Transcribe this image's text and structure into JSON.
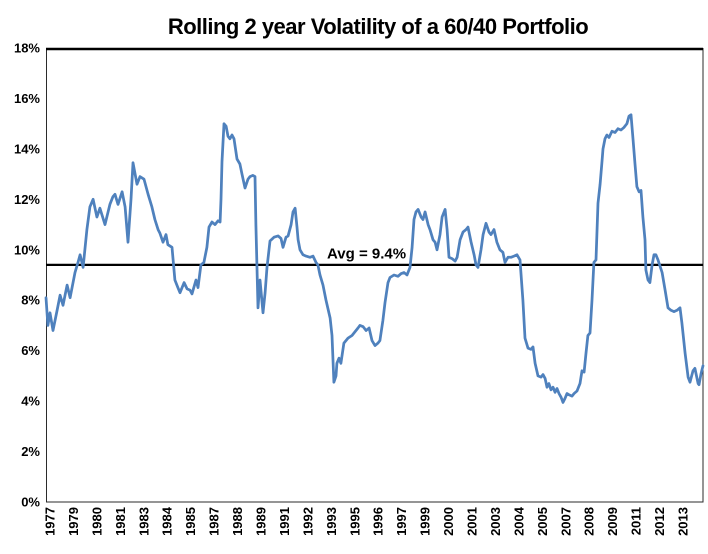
{
  "window": {
    "background": "#ffffff"
  },
  "chart_data": {
    "type": "line",
    "title": "Rolling 2 year Volatility of a 60/40 Portfolio",
    "xlabel": "",
    "ylabel": "",
    "grid": "off",
    "legend": "none",
    "x_range": [
      1977.0,
      2014.4
    ],
    "y_axis": {
      "min": 0,
      "max": 18,
      "tick_step": 2,
      "tick_labels": [
        "0%",
        "2%",
        "4%",
        "6%",
        "8%",
        "10%",
        "12%",
        "14%",
        "16%",
        "18%"
      ]
    },
    "x_tick_labels": [
      "1977",
      "1979",
      "1980",
      "1981",
      "1983",
      "1984",
      "1985",
      "1987",
      "1988",
      "1989",
      "1991",
      "1992",
      "1993",
      "1995",
      "1996",
      "1997",
      "1999",
      "2000",
      "2001",
      "2003",
      "2004",
      "2005",
      "2007",
      "2008",
      "2009",
      "2011",
      "2012",
      "2013"
    ],
    "average_line": {
      "value": 9.4,
      "label": "Avg = 9.4%",
      "color": "#000000"
    },
    "series": [
      {
        "name": "Rolling 2 year volatility",
        "color": "#4F81BD",
        "points": [
          [
            1977.0,
            8.1
          ],
          [
            1977.11,
            7.0
          ],
          [
            1977.23,
            7.5
          ],
          [
            1977.4,
            6.8
          ],
          [
            1977.63,
            7.6
          ],
          [
            1977.8,
            8.2
          ],
          [
            1977.97,
            7.8
          ],
          [
            1978.2,
            8.6
          ],
          [
            1978.37,
            8.1
          ],
          [
            1978.65,
            9.1
          ],
          [
            1978.82,
            9.5
          ],
          [
            1978.94,
            9.8
          ],
          [
            1979.11,
            9.3
          ],
          [
            1979.33,
            10.8
          ],
          [
            1979.5,
            11.7
          ],
          [
            1979.68,
            12.0
          ],
          [
            1979.9,
            11.3
          ],
          [
            1980.07,
            11.65
          ],
          [
            1980.36,
            11.0
          ],
          [
            1980.64,
            11.8
          ],
          [
            1980.81,
            12.1
          ],
          [
            1980.93,
            12.2
          ],
          [
            1981.1,
            11.8
          ],
          [
            1981.33,
            12.3
          ],
          [
            1981.5,
            11.7
          ],
          [
            1981.67,
            10.3
          ],
          [
            1981.84,
            12.0
          ],
          [
            1981.95,
            13.45
          ],
          [
            1982.18,
            12.6
          ],
          [
            1982.35,
            12.9
          ],
          [
            1982.58,
            12.8
          ],
          [
            1982.81,
            12.2
          ],
          [
            1983.03,
            11.7
          ],
          [
            1983.2,
            11.2
          ],
          [
            1983.38,
            10.8
          ],
          [
            1983.49,
            10.65
          ],
          [
            1983.66,
            10.3
          ],
          [
            1983.83,
            10.6
          ],
          [
            1983.94,
            10.2
          ],
          [
            1984.17,
            10.1
          ],
          [
            1984.34,
            8.8
          ],
          [
            1984.51,
            8.5
          ],
          [
            1984.63,
            8.3
          ],
          [
            1984.86,
            8.7
          ],
          [
            1985.03,
            8.45
          ],
          [
            1985.2,
            8.4
          ],
          [
            1985.31,
            8.25
          ],
          [
            1985.54,
            8.8
          ],
          [
            1985.65,
            8.5
          ],
          [
            1985.82,
            9.4
          ],
          [
            1985.99,
            9.5
          ],
          [
            1986.16,
            10.1
          ],
          [
            1986.28,
            10.9
          ],
          [
            1986.45,
            11.1
          ],
          [
            1986.62,
            11.0
          ],
          [
            1986.79,
            11.15
          ],
          [
            1986.91,
            11.1
          ],
          [
            1986.96,
            12.0
          ],
          [
            1987.02,
            13.5
          ],
          [
            1987.13,
            15.0
          ],
          [
            1987.25,
            14.9
          ],
          [
            1987.36,
            14.5
          ],
          [
            1987.47,
            14.4
          ],
          [
            1987.59,
            14.55
          ],
          [
            1987.7,
            14.4
          ],
          [
            1987.87,
            13.6
          ],
          [
            1988.04,
            13.4
          ],
          [
            1988.16,
            13.0
          ],
          [
            1988.33,
            12.45
          ],
          [
            1988.5,
            12.8
          ],
          [
            1988.61,
            12.9
          ],
          [
            1988.78,
            12.95
          ],
          [
            1988.9,
            12.9
          ],
          [
            1988.95,
            11.0
          ],
          [
            1989.07,
            7.7
          ],
          [
            1989.18,
            8.8
          ],
          [
            1989.35,
            7.5
          ],
          [
            1989.47,
            8.3
          ],
          [
            1989.58,
            9.3
          ],
          [
            1989.75,
            10.35
          ],
          [
            1989.98,
            10.5
          ],
          [
            1990.21,
            10.55
          ],
          [
            1990.38,
            10.45
          ],
          [
            1990.49,
            10.1
          ],
          [
            1990.66,
            10.5
          ],
          [
            1990.78,
            10.55
          ],
          [
            1990.95,
            11.0
          ],
          [
            1991.06,
            11.5
          ],
          [
            1991.18,
            11.65
          ],
          [
            1991.29,
            10.9
          ],
          [
            1991.35,
            10.4
          ],
          [
            1991.46,
            10.0
          ],
          [
            1991.63,
            9.8
          ],
          [
            1991.8,
            9.75
          ],
          [
            1992.03,
            9.7
          ],
          [
            1992.2,
            9.75
          ],
          [
            1992.37,
            9.5
          ],
          [
            1992.48,
            9.4
          ],
          [
            1992.6,
            9.0
          ],
          [
            1992.77,
            8.6
          ],
          [
            1992.94,
            8.0
          ],
          [
            1993.17,
            7.3
          ],
          [
            1993.28,
            6.6
          ],
          [
            1993.39,
            4.75
          ],
          [
            1993.51,
            5.0
          ],
          [
            1993.56,
            5.5
          ],
          [
            1993.68,
            5.7
          ],
          [
            1993.79,
            5.5
          ],
          [
            1993.96,
            6.3
          ],
          [
            1994.19,
            6.5
          ],
          [
            1994.42,
            6.6
          ],
          [
            1994.59,
            6.75
          ],
          [
            1994.76,
            6.9
          ],
          [
            1994.87,
            7.0
          ],
          [
            1995.05,
            6.95
          ],
          [
            1995.22,
            6.8
          ],
          [
            1995.39,
            6.9
          ],
          [
            1995.56,
            6.4
          ],
          [
            1995.73,
            6.2
          ],
          [
            1995.9,
            6.3
          ],
          [
            1996.01,
            6.4
          ],
          [
            1996.18,
            7.2
          ],
          [
            1996.3,
            7.9
          ],
          [
            1996.47,
            8.7
          ],
          [
            1996.58,
            8.9
          ],
          [
            1996.81,
            9.0
          ],
          [
            1997.04,
            8.95
          ],
          [
            1997.21,
            9.05
          ],
          [
            1997.38,
            9.1
          ],
          [
            1997.55,
            9.0
          ],
          [
            1997.72,
            9.3
          ],
          [
            1997.84,
            10.1
          ],
          [
            1997.95,
            11.2
          ],
          [
            1998.06,
            11.5
          ],
          [
            1998.18,
            11.6
          ],
          [
            1998.35,
            11.3
          ],
          [
            1998.46,
            11.2
          ],
          [
            1998.58,
            11.5
          ],
          [
            1998.75,
            11.0
          ],
          [
            1998.86,
            10.8
          ],
          [
            1999.03,
            10.4
          ],
          [
            1999.15,
            10.3
          ],
          [
            1999.26,
            10.0
          ],
          [
            1999.43,
            10.6
          ],
          [
            1999.55,
            11.3
          ],
          [
            1999.72,
            11.6
          ],
          [
            1999.83,
            10.8
          ],
          [
            1999.94,
            9.7
          ],
          [
            2000.11,
            9.65
          ],
          [
            2000.29,
            9.55
          ],
          [
            2000.4,
            9.7
          ],
          [
            2000.57,
            10.4
          ],
          [
            2000.74,
            10.7
          ],
          [
            2000.91,
            10.8
          ],
          [
            2001.02,
            10.9
          ],
          [
            2001.2,
            10.3
          ],
          [
            2001.37,
            9.8
          ],
          [
            2001.48,
            9.4
          ],
          [
            2001.59,
            9.3
          ],
          [
            2001.76,
            10.0
          ],
          [
            2001.88,
            10.6
          ],
          [
            2002.05,
            11.05
          ],
          [
            2002.22,
            10.7
          ],
          [
            2002.33,
            10.6
          ],
          [
            2002.5,
            10.8
          ],
          [
            2002.67,
            10.3
          ],
          [
            2002.84,
            10.0
          ],
          [
            2003.01,
            9.9
          ],
          [
            2003.13,
            9.5
          ],
          [
            2003.3,
            9.7
          ],
          [
            2003.47,
            9.7
          ],
          [
            2003.64,
            9.75
          ],
          [
            2003.81,
            9.8
          ],
          [
            2003.98,
            9.6
          ],
          [
            2004.15,
            8.0
          ],
          [
            2004.27,
            6.5
          ],
          [
            2004.44,
            6.1
          ],
          [
            2004.61,
            6.05
          ],
          [
            2004.72,
            6.15
          ],
          [
            2004.84,
            5.5
          ],
          [
            2005.01,
            5.0
          ],
          [
            2005.18,
            4.95
          ],
          [
            2005.29,
            5.05
          ],
          [
            2005.41,
            4.9
          ],
          [
            2005.52,
            4.55
          ],
          [
            2005.63,
            4.7
          ],
          [
            2005.75,
            4.45
          ],
          [
            2005.86,
            4.55
          ],
          [
            2005.98,
            4.35
          ],
          [
            2006.09,
            4.5
          ],
          [
            2006.2,
            4.3
          ],
          [
            2006.32,
            4.15
          ],
          [
            2006.43,
            3.95
          ],
          [
            2006.54,
            4.1
          ],
          [
            2006.66,
            4.3
          ],
          [
            2006.77,
            4.25
          ],
          [
            2006.94,
            4.2
          ],
          [
            2007.06,
            4.3
          ],
          [
            2007.23,
            4.4
          ],
          [
            2007.4,
            4.7
          ],
          [
            2007.51,
            5.2
          ],
          [
            2007.63,
            5.15
          ],
          [
            2007.74,
            5.9
          ],
          [
            2007.85,
            6.6
          ],
          [
            2007.97,
            6.7
          ],
          [
            2008.08,
            8.0
          ],
          [
            2008.19,
            9.5
          ],
          [
            2008.31,
            9.6
          ],
          [
            2008.42,
            11.85
          ],
          [
            2008.54,
            12.6
          ],
          [
            2008.65,
            13.5
          ],
          [
            2008.71,
            14.0
          ],
          [
            2008.82,
            14.4
          ],
          [
            2008.93,
            14.55
          ],
          [
            2009.05,
            14.45
          ],
          [
            2009.22,
            14.7
          ],
          [
            2009.39,
            14.65
          ],
          [
            2009.56,
            14.8
          ],
          [
            2009.73,
            14.75
          ],
          [
            2009.9,
            14.85
          ],
          [
            2010.07,
            15.0
          ],
          [
            2010.19,
            15.3
          ],
          [
            2010.3,
            15.35
          ],
          [
            2010.42,
            14.35
          ],
          [
            2010.53,
            13.4
          ],
          [
            2010.64,
            12.5
          ],
          [
            2010.76,
            12.3
          ],
          [
            2010.87,
            12.35
          ],
          [
            2010.98,
            11.3
          ],
          [
            2011.1,
            10.4
          ],
          [
            2011.15,
            9.2
          ],
          [
            2011.27,
            8.8
          ],
          [
            2011.38,
            8.7
          ],
          [
            2011.5,
            9.4
          ],
          [
            2011.61,
            9.8
          ],
          [
            2011.72,
            9.8
          ],
          [
            2011.84,
            9.6
          ],
          [
            2012.07,
            9.1
          ],
          [
            2012.24,
            8.4
          ],
          [
            2012.41,
            7.7
          ],
          [
            2012.58,
            7.6
          ],
          [
            2012.75,
            7.55
          ],
          [
            2012.92,
            7.6
          ],
          [
            2013.09,
            7.7
          ],
          [
            2013.2,
            7.1
          ],
          [
            2013.38,
            5.9
          ],
          [
            2013.55,
            4.95
          ],
          [
            2013.66,
            4.75
          ],
          [
            2013.83,
            5.2
          ],
          [
            2013.94,
            5.3
          ],
          [
            2014.12,
            4.7
          ],
          [
            2014.17,
            4.65
          ],
          [
            2014.29,
            5.1
          ],
          [
            2014.4,
            5.4
          ]
        ]
      }
    ]
  }
}
